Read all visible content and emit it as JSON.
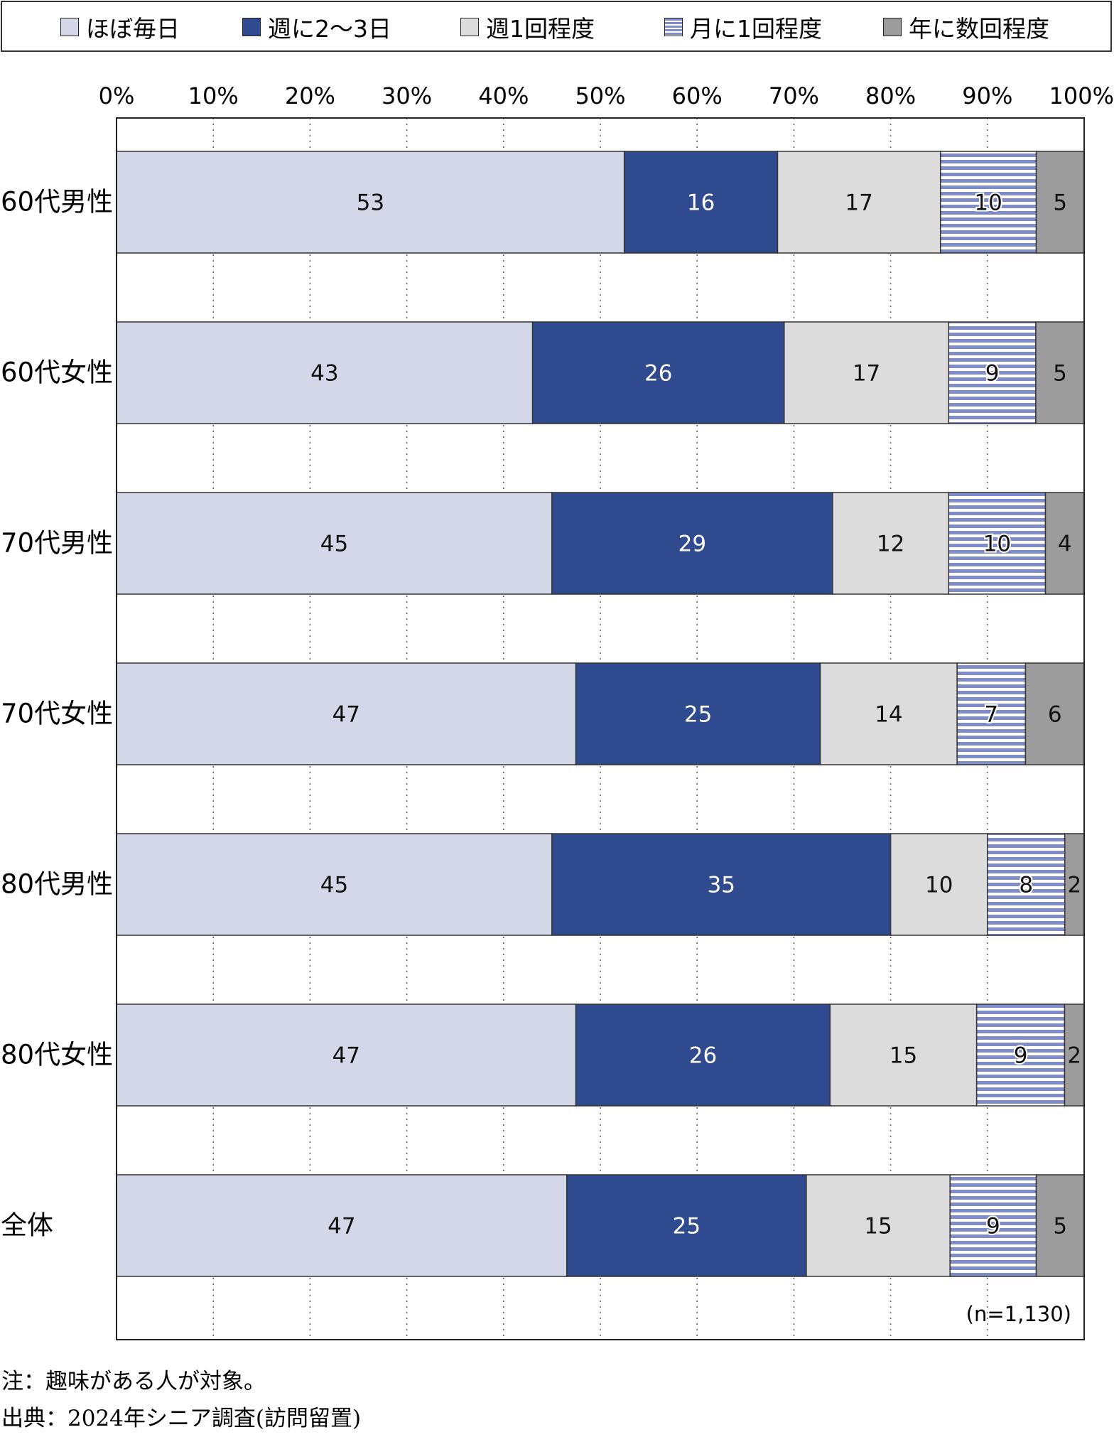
{
  "chart_data": {
    "type": "bar",
    "orientation": "horizontal",
    "stacked": true,
    "categories": [
      "60代男性",
      "60代女性",
      "70代男性",
      "70代女性",
      "80代男性",
      "80代女性",
      "全体"
    ],
    "series": [
      {
        "name": "ほぼ毎日",
        "color": "#d4d7e8",
        "pattern": "solid",
        "values": [
          53,
          43,
          45,
          47,
          45,
          47,
          47
        ]
      },
      {
        "name": "週に2～3日",
        "color": "#2f4a8e",
        "pattern": "solid",
        "values": [
          16,
          26,
          29,
          25,
          35,
          26,
          25
        ]
      },
      {
        "name": "週1回程度",
        "color": "#dcdcdc",
        "pattern": "solid",
        "values": [
          17,
          17,
          12,
          14,
          10,
          15,
          15
        ]
      },
      {
        "name": "月に1回程度",
        "color": "#7f8cc7",
        "pattern": "horizontal-stripes",
        "values": [
          10,
          9,
          10,
          7,
          8,
          9,
          9
        ]
      },
      {
        "name": "年に数回程度",
        "color": "#9c9c9c",
        "pattern": "solid",
        "values": [
          5,
          5,
          4,
          6,
          2,
          2,
          5
        ]
      }
    ],
    "xlim": [
      0,
      100
    ],
    "x_tick_labels": [
      "0%",
      "10%",
      "20%",
      "30%",
      "40%",
      "50%",
      "60%",
      "70%",
      "80%",
      "90%",
      "100%"
    ],
    "grid": "vertical dotted",
    "legend_position": "top",
    "annotation": "(n=1,130)"
  },
  "notes": [
    "注：趣味がある人が対象。",
    "出典：2024年シニア調査(訪問留置)"
  ]
}
